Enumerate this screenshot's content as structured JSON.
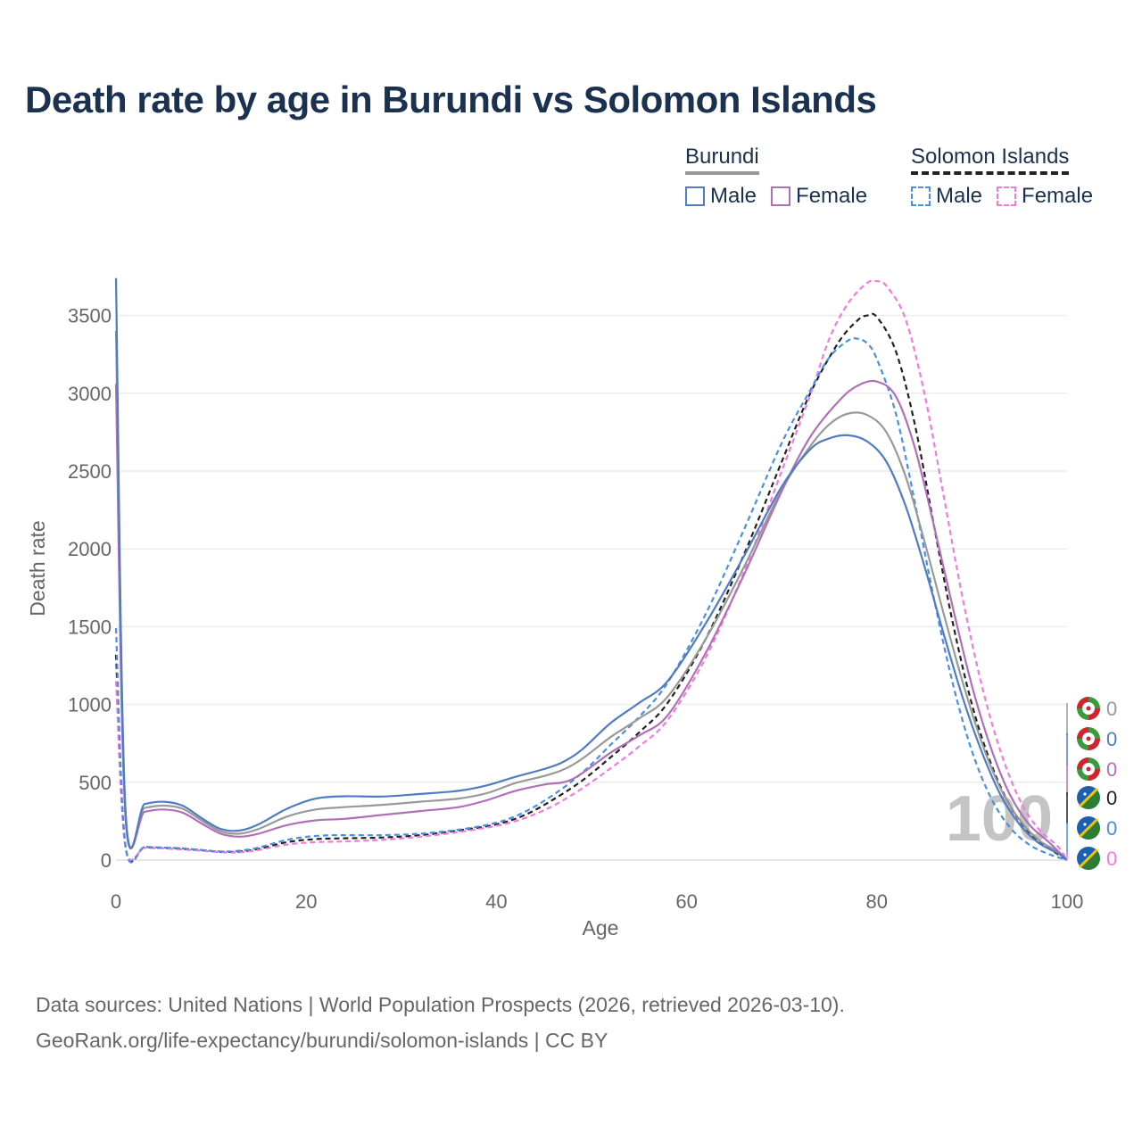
{
  "title": "Death rate by age in Burundi vs Solomon Islands",
  "legend": {
    "groups": [
      {
        "name": "Burundi",
        "head_line_color": "#999999",
        "head_dash": false,
        "items": [
          {
            "label": "Male",
            "color": "#4f7cc2",
            "dashed": false
          },
          {
            "label": "Female",
            "color": "#b070b8",
            "dashed": false
          }
        ]
      },
      {
        "name": "Solomon Islands",
        "head_line_color": "#222222",
        "head_dash": true,
        "items": [
          {
            "label": "Male",
            "color": "#4a8fe0",
            "dashed": true
          },
          {
            "label": "Female",
            "color": "#f07ae0",
            "dashed": true
          }
        ]
      }
    ]
  },
  "footer": {
    "line1": "Data sources: United Nations | World Population Prospects (2026, retrieved 2026-03-10).",
    "line2": "GeoRank.org/life-expectancy/burundi/solomon-islands | CC BY"
  },
  "chart_data": {
    "type": "line",
    "xlabel": "Age",
    "ylabel": "Death rate",
    "xlim": [
      0,
      100
    ],
    "ylim": [
      0,
      3750
    ],
    "xticks": [
      0,
      20,
      40,
      60,
      80,
      100
    ],
    "yticks": [
      0,
      500,
      1000,
      1500,
      2000,
      2500,
      3000,
      3500
    ],
    "grid": true,
    "age_marker": "100",
    "series": [
      {
        "name": "Burundi Male",
        "color": "#4f7cc2",
        "dash": false,
        "end_label": "0",
        "points": [
          [
            0,
            3740
          ],
          [
            1,
            320
          ],
          [
            3,
            360
          ],
          [
            5,
            375
          ],
          [
            7,
            350
          ],
          [
            9,
            270
          ],
          [
            11,
            200
          ],
          [
            13,
            190
          ],
          [
            15,
            230
          ],
          [
            18,
            330
          ],
          [
            21,
            395
          ],
          [
            24,
            410
          ],
          [
            28,
            408
          ],
          [
            32,
            425
          ],
          [
            36,
            445
          ],
          [
            39,
            480
          ],
          [
            42,
            535
          ],
          [
            45,
            585
          ],
          [
            47,
            630
          ],
          [
            49,
            710
          ],
          [
            52,
            880
          ],
          [
            55,
            1010
          ],
          [
            58,
            1150
          ],
          [
            62,
            1520
          ],
          [
            66,
            1950
          ],
          [
            70,
            2400
          ],
          [
            73,
            2640
          ],
          [
            75,
            2710
          ],
          [
            77,
            2730
          ],
          [
            79,
            2690
          ],
          [
            81,
            2560
          ],
          [
            83,
            2280
          ],
          [
            85,
            1890
          ],
          [
            87,
            1460
          ],
          [
            89,
            1050
          ],
          [
            91,
            700
          ],
          [
            93,
            420
          ],
          [
            95,
            230
          ],
          [
            97,
            110
          ],
          [
            99,
            45
          ],
          [
            100,
            0
          ]
        ]
      },
      {
        "name": "Burundi Female",
        "color": "#b070b8",
        "dash": false,
        "end_label": "0",
        "points": [
          [
            0,
            3060
          ],
          [
            1,
            270
          ],
          [
            3,
            310
          ],
          [
            5,
            325
          ],
          [
            7,
            305
          ],
          [
            9,
            235
          ],
          [
            11,
            170
          ],
          [
            13,
            150
          ],
          [
            15,
            170
          ],
          [
            18,
            225
          ],
          [
            21,
            255
          ],
          [
            24,
            265
          ],
          [
            28,
            290
          ],
          [
            32,
            315
          ],
          [
            36,
            340
          ],
          [
            39,
            385
          ],
          [
            42,
            445
          ],
          [
            45,
            485
          ],
          [
            48,
            520
          ],
          [
            52,
            690
          ],
          [
            55,
            800
          ],
          [
            58,
            930
          ],
          [
            62,
            1330
          ],
          [
            66,
            1830
          ],
          [
            70,
            2370
          ],
          [
            73,
            2720
          ],
          [
            76,
            2950
          ],
          [
            78,
            3050
          ],
          [
            80,
            3075
          ],
          [
            82,
            2980
          ],
          [
            84,
            2650
          ],
          [
            86,
            2150
          ],
          [
            88,
            1620
          ],
          [
            90,
            1120
          ],
          [
            92,
            720
          ],
          [
            94,
            420
          ],
          [
            96,
            230
          ],
          [
            98,
            120
          ],
          [
            100,
            0
          ]
        ]
      },
      {
        "name": "Burundi Total",
        "color": "#999999",
        "dash": false,
        "end_label": "0",
        "points": [
          [
            0,
            3400
          ],
          [
            1,
            300
          ],
          [
            3,
            335
          ],
          [
            5,
            350
          ],
          [
            7,
            330
          ],
          [
            9,
            255
          ],
          [
            11,
            185
          ],
          [
            13,
            170
          ],
          [
            15,
            200
          ],
          [
            18,
            280
          ],
          [
            21,
            325
          ],
          [
            24,
            340
          ],
          [
            28,
            355
          ],
          [
            32,
            375
          ],
          [
            36,
            395
          ],
          [
            39,
            430
          ],
          [
            42,
            495
          ],
          [
            45,
            540
          ],
          [
            47,
            580
          ],
          [
            49,
            650
          ],
          [
            52,
            790
          ],
          [
            55,
            910
          ],
          [
            58,
            1050
          ],
          [
            62,
            1420
          ],
          [
            66,
            1880
          ],
          [
            70,
            2380
          ],
          [
            73,
            2660
          ],
          [
            75,
            2800
          ],
          [
            77,
            2870
          ],
          [
            79,
            2860
          ],
          [
            81,
            2750
          ],
          [
            83,
            2470
          ],
          [
            85,
            2050
          ],
          [
            87,
            1590
          ],
          [
            89,
            1150
          ],
          [
            91,
            760
          ],
          [
            93,
            460
          ],
          [
            95,
            260
          ],
          [
            97,
            130
          ],
          [
            99,
            55
          ],
          [
            100,
            0
          ]
        ]
      },
      {
        "name": "Solomon Islands Male",
        "color": "#4a8fe0",
        "dash": true,
        "end_label": "0",
        "points": [
          [
            0,
            1490
          ],
          [
            1,
            90
          ],
          [
            3,
            85
          ],
          [
            5,
            80
          ],
          [
            7,
            75
          ],
          [
            9,
            65
          ],
          [
            11,
            55
          ],
          [
            13,
            60
          ],
          [
            15,
            80
          ],
          [
            18,
            130
          ],
          [
            21,
            155
          ],
          [
            24,
            160
          ],
          [
            28,
            160
          ],
          [
            32,
            170
          ],
          [
            36,
            195
          ],
          [
            40,
            240
          ],
          [
            43,
            310
          ],
          [
            46,
            420
          ],
          [
            49,
            560
          ],
          [
            52,
            740
          ],
          [
            55,
            920
          ],
          [
            58,
            1140
          ],
          [
            62,
            1580
          ],
          [
            66,
            2120
          ],
          [
            70,
            2680
          ],
          [
            73,
            3020
          ],
          [
            75,
            3230
          ],
          [
            77,
            3340
          ],
          [
            78,
            3350
          ],
          [
            79,
            3320
          ],
          [
            80,
            3220
          ],
          [
            82,
            2870
          ],
          [
            84,
            2300
          ],
          [
            86,
            1680
          ],
          [
            88,
            1130
          ],
          [
            90,
            700
          ],
          [
            92,
            400
          ],
          [
            94,
            210
          ],
          [
            96,
            100
          ],
          [
            98,
            40
          ],
          [
            100,
            0
          ]
        ]
      },
      {
        "name": "Solomon Islands Female",
        "color": "#f07ae0",
        "dash": true,
        "end_label": "0",
        "points": [
          [
            0,
            1150
          ],
          [
            1,
            80
          ],
          [
            3,
            78
          ],
          [
            5,
            75
          ],
          [
            7,
            68
          ],
          [
            9,
            60
          ],
          [
            11,
            50
          ],
          [
            13,
            50
          ],
          [
            15,
            65
          ],
          [
            18,
            100
          ],
          [
            21,
            115
          ],
          [
            24,
            120
          ],
          [
            28,
            130
          ],
          [
            32,
            150
          ],
          [
            36,
            180
          ],
          [
            40,
            220
          ],
          [
            43,
            270
          ],
          [
            46,
            350
          ],
          [
            49,
            460
          ],
          [
            52,
            590
          ],
          [
            55,
            730
          ],
          [
            58,
            900
          ],
          [
            62,
            1300
          ],
          [
            66,
            1850
          ],
          [
            70,
            2500
          ],
          [
            73,
            2990
          ],
          [
            75,
            3350
          ],
          [
            77,
            3580
          ],
          [
            79,
            3710
          ],
          [
            80,
            3720
          ],
          [
            81,
            3690
          ],
          [
            83,
            3480
          ],
          [
            85,
            3000
          ],
          [
            87,
            2350
          ],
          [
            89,
            1690
          ],
          [
            91,
            1130
          ],
          [
            93,
            700
          ],
          [
            95,
            390
          ],
          [
            97,
            200
          ],
          [
            99,
            90
          ],
          [
            100,
            0
          ]
        ]
      },
      {
        "name": "Solomon Islands Total",
        "color": "#222222",
        "dash": true,
        "end_label": "0",
        "points": [
          [
            0,
            1320
          ],
          [
            1,
            85
          ],
          [
            3,
            82
          ],
          [
            5,
            78
          ],
          [
            7,
            72
          ],
          [
            9,
            63
          ],
          [
            11,
            53
          ],
          [
            13,
            55
          ],
          [
            15,
            72
          ],
          [
            18,
            115
          ],
          [
            21,
            135
          ],
          [
            24,
            140
          ],
          [
            28,
            145
          ],
          [
            32,
            160
          ],
          [
            36,
            190
          ],
          [
            40,
            230
          ],
          [
            43,
            290
          ],
          [
            46,
            390
          ],
          [
            49,
            510
          ],
          [
            52,
            660
          ],
          [
            55,
            820
          ],
          [
            58,
            1010
          ],
          [
            62,
            1420
          ],
          [
            66,
            1960
          ],
          [
            70,
            2560
          ],
          [
            73,
            3000
          ],
          [
            76,
            3330
          ],
          [
            78,
            3470
          ],
          [
            79,
            3500
          ],
          [
            80,
            3490
          ],
          [
            82,
            3270
          ],
          [
            84,
            2800
          ],
          [
            86,
            2150
          ],
          [
            88,
            1520
          ],
          [
            90,
            1000
          ],
          [
            92,
            620
          ],
          [
            94,
            350
          ],
          [
            96,
            180
          ],
          [
            98,
            80
          ],
          [
            100,
            0
          ]
        ]
      }
    ]
  }
}
